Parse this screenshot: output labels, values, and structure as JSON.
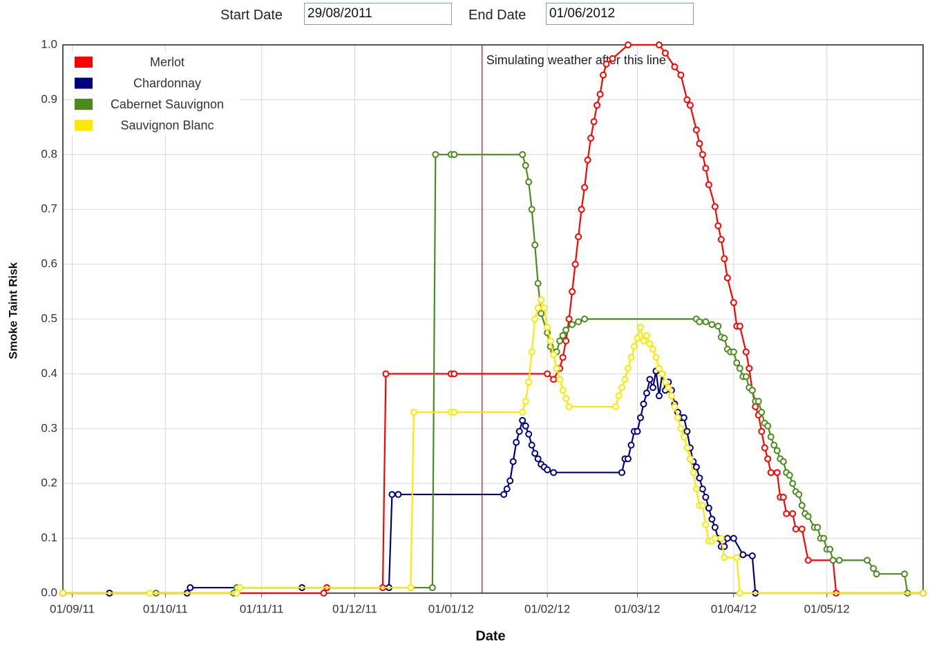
{
  "form": {
    "start_label": "Start Date",
    "start_value": "29/08/2011",
    "end_label": "End Date",
    "end_value": "01/06/2012"
  },
  "chart_data": {
    "type": "line",
    "xlabel": "Date",
    "ylabel": "Smoke Taint Risk",
    "xlim": [
      "29/08/11",
      "01/06/12"
    ],
    "xticks": [
      "01/09/11",
      "01/10/11",
      "01/11/11",
      "01/12/11",
      "01/01/12",
      "01/02/12",
      "01/03/12",
      "01/04/12",
      "01/05/12"
    ],
    "ylim": [
      0,
      1
    ],
    "yticks": [
      {
        "value": 0,
        "label": "0.0"
      },
      0.1,
      0.2,
      0.3,
      0.4,
      0.5,
      0.6,
      0.7,
      0.8,
      0.9,
      {
        "value": 1,
        "label": "1.0"
      }
    ],
    "grid": true,
    "legend": "upper left",
    "annotation": {
      "text": "Simulating weather after this line",
      "x": "11/01/12",
      "color": "#e00000"
    },
    "series": [
      {
        "name": "Merlot",
        "color": "#ff0000",
        "x": [
          "29/08/11",
          "13/09/11",
          "21/11/11",
          "22/11/11",
          "10/12/11",
          "11/12/11",
          "01/01/12",
          "02/01/12",
          "01/02/12",
          "03/02/12",
          "05/02/12",
          "06/02/12",
          "07/02/12",
          "08/02/12",
          "09/02/12",
          "10/02/12",
          "11/02/12",
          "12/02/12",
          "13/02/12",
          "14/02/12",
          "15/02/12",
          "16/02/12",
          "17/02/12",
          "18/02/12",
          "19/02/12",
          "20/02/12",
          "22/02/12",
          "27/02/12",
          "08/03/12",
          "10/03/12",
          "13/03/12",
          "15/03/12",
          "17/03/12",
          "18/03/12",
          "20/03/12",
          "21/03/12",
          "22/03/12",
          "23/03/12",
          "24/03/12",
          "26/03/12",
          "27/03/12",
          "28/03/12",
          "29/03/12",
          "30/03/12",
          "01/04/12",
          "02/04/12",
          "03/04/12",
          "05/04/12",
          "06/04/12",
          "07/04/12",
          "08/04/12",
          "09/04/12",
          "10/04/12",
          "11/04/12",
          "12/04/12",
          "13/04/12",
          "15/04/12",
          "16/04/12",
          "17/04/12",
          "18/04/12",
          "20/04/12",
          "21/04/12",
          "23/04/12",
          "25/04/12",
          "03/05/12",
          "04/05/12",
          "01/06/12"
        ],
        "values": [
          0,
          0,
          0,
          0.01,
          0.01,
          0.4,
          0.4,
          0.4,
          0.4,
          0.39,
          0.41,
          0.43,
          0.46,
          0.5,
          0.55,
          0.6,
          0.65,
          0.7,
          0.74,
          0.79,
          0.83,
          0.86,
          0.89,
          0.91,
          0.945,
          0.965,
          0.975,
          1,
          1,
          0.985,
          0.96,
          0.945,
          0.9,
          0.89,
          0.845,
          0.82,
          0.8,
          0.775,
          0.745,
          0.705,
          0.67,
          0.645,
          0.61,
          0.575,
          0.53,
          0.487,
          0.487,
          0.44,
          0.41,
          0.37,
          0.34,
          0.325,
          0.295,
          0.265,
          0.245,
          0.22,
          0.22,
          0.175,
          0.175,
          0.145,
          0.145,
          0.117,
          0.117,
          0.06,
          0.06,
          0,
          0
        ]
      },
      {
        "name": "Chardonnay",
        "color": "#000080",
        "x": [
          "29/08/11",
          "13/09/11",
          "08/10/11",
          "09/10/11",
          "14/11/11",
          "12/12/11",
          "13/12/11",
          "15/12/11",
          "18/01/12",
          "19/01/12",
          "20/01/12",
          "21/01/12",
          "22/01/12",
          "23/01/12",
          "24/01/12",
          "25/01/12",
          "26/01/12",
          "27/01/12",
          "28/01/12",
          "29/01/12",
          "30/01/12",
          "31/01/12",
          "01/02/12",
          "03/02/12",
          "25/02/12",
          "26/02/12",
          "27/02/12",
          "28/02/12",
          "29/02/12",
          "01/03/12",
          "02/03/12",
          "03/03/12",
          "04/03/12",
          "05/03/12",
          "06/03/12",
          "07/03/12",
          "08/03/12",
          "09/03/12",
          "10/03/12",
          "11/03/12",
          "12/03/12",
          "13/03/12",
          "14/03/12",
          "15/03/12",
          "16/03/12",
          "17/03/12",
          "18/03/12",
          "19/03/12",
          "20/03/12",
          "21/03/12",
          "22/03/12",
          "23/03/12",
          "24/03/12",
          "25/03/12",
          "26/03/12",
          "27/03/12",
          "28/03/12",
          "29/03/12",
          "30/03/12",
          "01/04/12",
          "04/04/12",
          "07/04/12",
          "08/04/12",
          "01/06/12"
        ],
        "values": [
          0,
          0,
          0,
          0.01,
          0.01,
          0.01,
          0.18,
          0.18,
          0.18,
          0.19,
          0.205,
          0.24,
          0.275,
          0.295,
          0.315,
          0.305,
          0.29,
          0.27,
          0.255,
          0.245,
          0.235,
          0.23,
          0.225,
          0.22,
          0.22,
          0.245,
          0.245,
          0.27,
          0.295,
          0.295,
          0.32,
          0.345,
          0.365,
          0.39,
          0.375,
          0.405,
          0.36,
          0.4,
          0.37,
          0.385,
          0.37,
          0.345,
          0.33,
          0.32,
          0.32,
          0.295,
          0.265,
          0.24,
          0.23,
          0.21,
          0.19,
          0.175,
          0.155,
          0.135,
          0.12,
          0.1,
          0.085,
          0.085,
          0.1,
          0.1,
          0.07,
          0.068,
          0,
          0
        ]
      },
      {
        "name": "Cabernet Sauvignon",
        "color": "#4a8c1c",
        "x": [
          "29/08/11",
          "28/09/11",
          "23/10/11",
          "24/10/11",
          "26/12/11",
          "27/12/11",
          "01/01/12",
          "02/01/12",
          "24/01/12",
          "25/01/12",
          "26/01/12",
          "27/01/12",
          "28/01/12",
          "29/01/12",
          "30/01/12",
          "01/02/12",
          "02/02/12",
          "03/02/12",
          "04/02/12",
          "05/02/12",
          "06/02/12",
          "07/02/12",
          "09/02/12",
          "11/02/12",
          "13/02/12",
          "20/03/12",
          "21/03/12",
          "23/03/12",
          "25/03/12",
          "27/03/12",
          "28/03/12",
          "29/03/12",
          "30/03/12",
          "31/03/12",
          "01/04/12",
          "02/04/12",
          "03/04/12",
          "04/04/12",
          "05/04/12",
          "06/04/12",
          "07/04/12",
          "08/04/12",
          "09/04/12",
          "10/04/12",
          "11/04/12",
          "12/04/12",
          "13/04/12",
          "14/04/12",
          "15/04/12",
          "16/04/12",
          "17/04/12",
          "18/04/12",
          "19/04/12",
          "20/04/12",
          "21/04/12",
          "22/04/12",
          "23/04/12",
          "24/04/12",
          "25/04/12",
          "27/04/12",
          "28/04/12",
          "29/04/12",
          "30/04/12",
          "01/05/12",
          "02/05/12",
          "03/05/12",
          "05/05/12",
          "14/05/12",
          "16/05/12",
          "17/05/12",
          "26/05/12",
          "27/05/12",
          "01/06/12"
        ],
        "values": [
          0,
          0,
          0,
          0.01,
          0.01,
          0.8,
          0.8,
          0.8,
          0.8,
          0.78,
          0.75,
          0.7,
          0.635,
          0.565,
          0.51,
          0.475,
          0.45,
          0.44,
          0.44,
          0.46,
          0.47,
          0.48,
          0.49,
          0.495,
          0.5,
          0.5,
          0.495,
          0.495,
          0.49,
          0.487,
          0.467,
          0.465,
          0.445,
          0.44,
          0.44,
          0.42,
          0.41,
          0.395,
          0.395,
          0.375,
          0.37,
          0.35,
          0.35,
          0.33,
          0.31,
          0.305,
          0.285,
          0.27,
          0.26,
          0.245,
          0.24,
          0.22,
          0.215,
          0.2,
          0.185,
          0.18,
          0.16,
          0.145,
          0.14,
          0.12,
          0.12,
          0.1,
          0.1,
          0.08,
          0.08,
          0.06,
          0.06,
          0.06,
          0.045,
          0.035,
          0.035,
          0,
          0
        ]
      },
      {
        "name": "Sauvignon Blanc",
        "color": "#ffe800",
        "x": [
          "29/08/11",
          "26/09/11",
          "24/10/11",
          "25/10/11",
          "19/12/11",
          "20/12/11",
          "01/01/12",
          "02/01/12",
          "24/01/12",
          "25/01/12",
          "26/01/12",
          "27/01/12",
          "28/01/12",
          "29/01/12",
          "30/01/12",
          "31/01/12",
          "01/02/12",
          "02/02/12",
          "03/02/12",
          "04/02/12",
          "05/02/12",
          "06/02/12",
          "07/02/12",
          "08/02/12",
          "23/02/12",
          "24/02/12",
          "25/02/12",
          "26/02/12",
          "27/02/12",
          "28/02/12",
          "29/02/12",
          "01/03/12",
          "02/03/12",
          "03/03/12",
          "04/03/12",
          "05/03/12",
          "06/03/12",
          "07/03/12",
          "08/03/12",
          "09/03/12",
          "10/03/12",
          "11/03/12",
          "12/03/12",
          "13/03/12",
          "14/03/12",
          "15/03/12",
          "16/03/12",
          "17/03/12",
          "18/03/12",
          "19/03/12",
          "20/03/12",
          "21/03/12",
          "22/03/12",
          "23/03/12",
          "24/03/12",
          "25/03/12",
          "26/03/12",
          "28/03/12",
          "29/03/12",
          "02/04/12",
          "03/04/12",
          "01/06/12"
        ],
        "values": [
          0,
          0,
          0,
          0.01,
          0.01,
          0.33,
          0.33,
          0.33,
          0.33,
          0.35,
          0.385,
          0.44,
          0.5,
          0.52,
          0.535,
          0.52,
          0.485,
          0.46,
          0.435,
          0.41,
          0.39,
          0.37,
          0.355,
          0.34,
          0.34,
          0.36,
          0.375,
          0.39,
          0.41,
          0.43,
          0.45,
          0.465,
          0.485,
          0.46,
          0.47,
          0.455,
          0.445,
          0.43,
          0.41,
          0.4,
          0.385,
          0.375,
          0.36,
          0.34,
          0.32,
          0.3,
          0.285,
          0.265,
          0.245,
          0.22,
          0.19,
          0.16,
          0.16,
          0.125,
          0.095,
          0.095,
          0.1,
          0.1,
          0.065,
          0.065,
          0,
          0
        ]
      }
    ]
  }
}
